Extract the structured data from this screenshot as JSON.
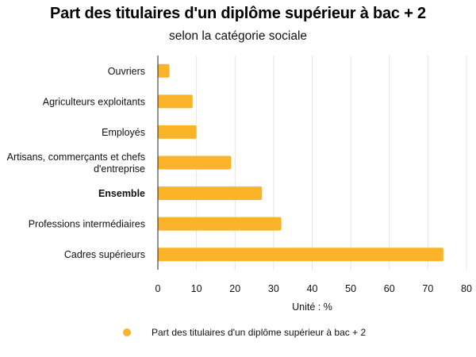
{
  "title": "Part des titulaires d'un diplôme supérieur à bac + 2",
  "subtitle": "selon la catégorie sociale",
  "colors": {
    "bar": "#FBB32A",
    "grid": "#e4e4e4",
    "axis": "#222222"
  },
  "chart_data": {
    "type": "bar",
    "orientation": "horizontal",
    "title": "Part des titulaires d'un diplôme supérieur à bac + 2",
    "subtitle": "selon la catégorie sociale",
    "categories": [
      "Ouvriers",
      "Agriculteurs exploitants",
      "Employés",
      "Artisans, commerçants et chefs d'entreprise",
      "Ensemble",
      "Professions intermédiaires",
      "Cadres supérieurs"
    ],
    "category_lines": [
      [
        "Ouvriers"
      ],
      [
        "Agriculteurs exploitants"
      ],
      [
        "Employés"
      ],
      [
        "Artisans, commerçants et chefs",
        "d'entreprise"
      ],
      [
        "Ensemble"
      ],
      [
        "Professions intermédiaires"
      ],
      [
        "Cadres supérieurs"
      ]
    ],
    "bold_categories": [
      "Ensemble"
    ],
    "series": [
      {
        "name": "Part des titulaires d'un diplôme supérieur à bac + 2",
        "values": [
          3,
          9,
          10,
          19,
          27,
          32,
          74
        ]
      }
    ],
    "xlabel": "Unité : %",
    "ylabel": "",
    "xlim": [
      0,
      80
    ],
    "xticks": [
      0,
      10,
      20,
      30,
      40,
      50,
      60,
      70,
      80
    ],
    "grid": true,
    "legend": "bottom"
  }
}
